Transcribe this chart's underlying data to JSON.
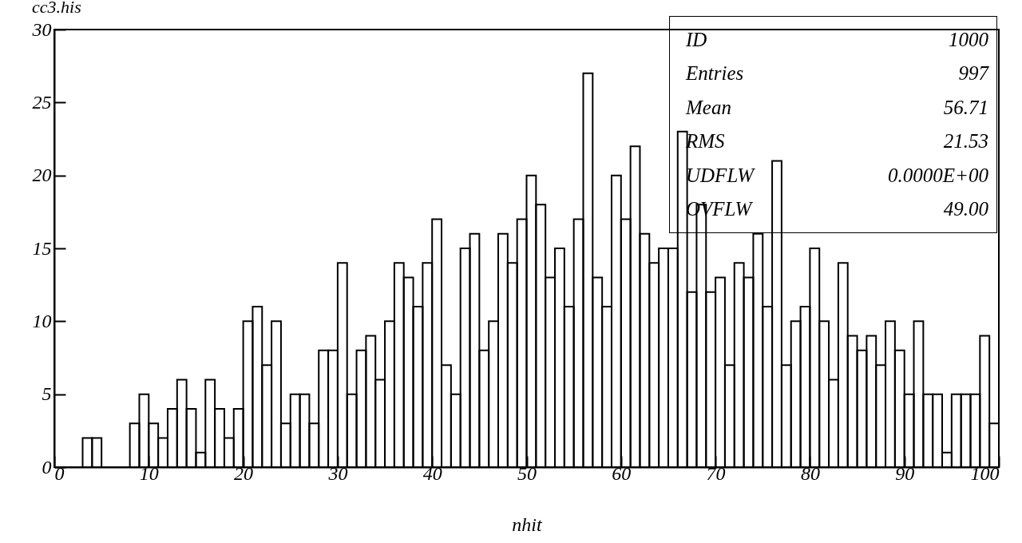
{
  "chart_data": {
    "type": "histogram",
    "title": "cc3.his",
    "xlabel": "nhit",
    "bins": [
      0,
      1,
      2,
      3,
      4,
      5,
      6,
      7,
      8,
      9,
      10,
      11,
      12,
      13,
      14,
      15,
      16,
      17,
      18,
      19,
      20,
      21,
      22,
      23,
      24,
      25,
      26,
      27,
      28,
      29,
      30,
      31,
      32,
      33,
      34,
      35,
      36,
      37,
      38,
      39,
      40,
      41,
      42,
      43,
      44,
      45,
      46,
      47,
      48,
      49,
      50,
      51,
      52,
      53,
      54,
      55,
      56,
      57,
      58,
      59,
      60,
      61,
      62,
      63,
      64,
      65,
      66,
      67,
      68,
      69,
      70,
      71,
      72,
      73,
      74,
      75,
      76,
      77,
      78,
      79,
      80,
      81,
      82,
      83,
      84,
      85,
      86,
      87,
      88,
      89,
      90,
      91,
      92,
      93,
      94,
      95,
      96,
      97,
      98,
      99,
      100
    ],
    "values": [
      0,
      0,
      0,
      2,
      2,
      0,
      0,
      0,
      3,
      5,
      3,
      2,
      4,
      6,
      4,
      1,
      6,
      4,
      2,
      4,
      10,
      11,
      7,
      10,
      3,
      5,
      5,
      3,
      8,
      8,
      14,
      5,
      8,
      9,
      6,
      10,
      14,
      13,
      11,
      14,
      17,
      7,
      5,
      15,
      16,
      8,
      10,
      16,
      14,
      17,
      20,
      18,
      13,
      15,
      11,
      17,
      27,
      13,
      11,
      20,
      17,
      22,
      16,
      14,
      15,
      15,
      23,
      12,
      18,
      12,
      13,
      7,
      14,
      13,
      16,
      11,
      21,
      7,
      10,
      11,
      15,
      10,
      6,
      14,
      9,
      8,
      9,
      7,
      10,
      8,
      5,
      10,
      5,
      5,
      1,
      5,
      5,
      5,
      9,
      3
    ],
    "color": "#000000",
    "xlim": [
      0,
      100
    ],
    "xticks": [
      0,
      10,
      20,
      30,
      40,
      50,
      60,
      70,
      80,
      90,
      100
    ],
    "ylim": [
      0,
      30
    ],
    "yticks": [
      0,
      5,
      10,
      15,
      20,
      25,
      30
    ],
    "grid": false,
    "annotations": [
      "ID",
      "1000",
      "Entries",
      "997",
      "Mean",
      "56.71",
      "RMS",
      "21.53",
      "UDFLW",
      "0.0000E+00",
      "OVFLW",
      "49.00"
    ]
  }
}
